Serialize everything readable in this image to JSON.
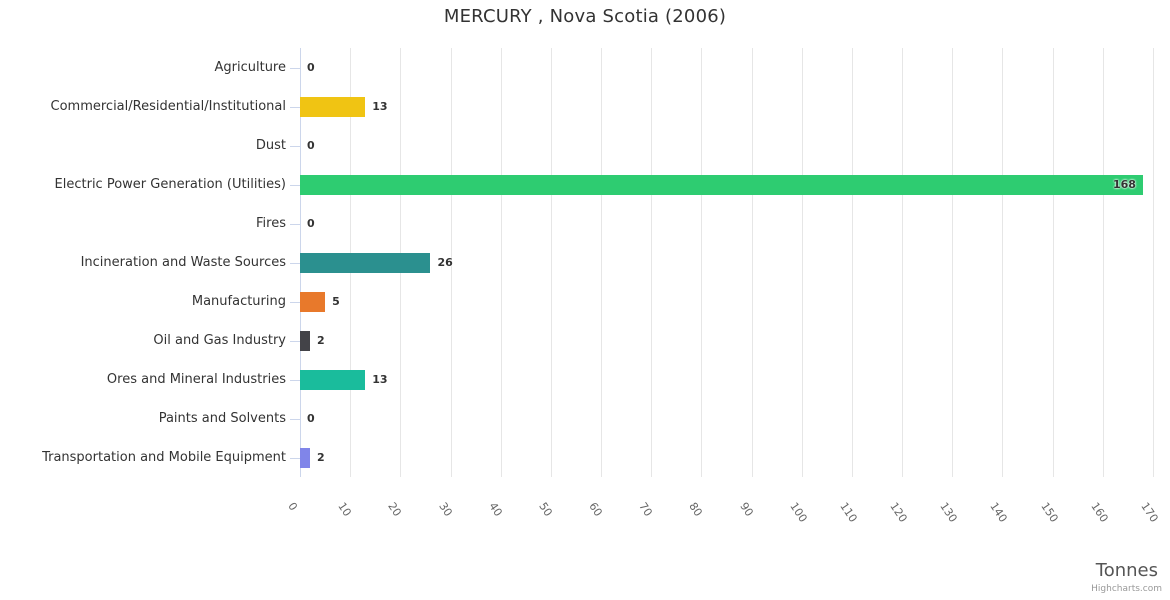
{
  "chart_data": {
    "type": "bar",
    "orientation": "horizontal",
    "title": "MERCURY , Nova Scotia (2006)",
    "xlabel": "Tonnes",
    "credit": "Highcharts.com",
    "categories": [
      "Agriculture",
      "Commercial/Residential/Institutional",
      "Dust",
      "Electric Power Generation (Utilities)",
      "Fires",
      "Incineration and Waste Sources",
      "Manufacturing",
      "Oil and Gas Industry",
      "Ores and Mineral Industries",
      "Paints and Solvents",
      "Transportation and Mobile Equipment"
    ],
    "values": [
      0,
      13,
      0,
      168,
      0,
      26,
      5,
      2,
      13,
      0,
      2
    ],
    "bar_colors": [
      null,
      "#f0c413",
      null,
      "#2ecc71",
      null,
      "#2b908f",
      "#e8792b",
      "#434348",
      "#1abc9c",
      null,
      "#8085e9"
    ],
    "x_tick_labels": [
      "0",
      "10",
      "20",
      "30",
      "40",
      "50",
      "60",
      "70",
      "80",
      "90",
      "100",
      "110",
      "120",
      "130",
      "140",
      "150",
      "160",
      "170"
    ],
    "xlim": [
      0,
      170
    ],
    "tick_interval": 10,
    "grid": true,
    "legend": false,
    "colors": {
      "title_text": "#333333",
      "category_text": "#333333",
      "value_text": "#333333",
      "x_tick_text": "#666666",
      "gridline": "#e6e6e6",
      "axis_line": "#ccd6eb",
      "axis_title_text": "#555555",
      "credit_text": "#999999",
      "background": "#ffffff"
    }
  }
}
